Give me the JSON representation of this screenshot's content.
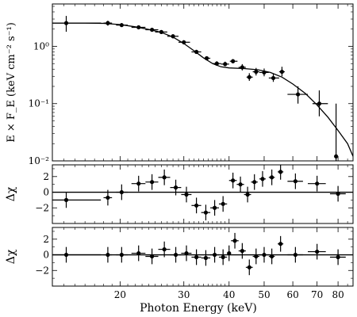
{
  "chart_data": [
    {
      "panel": "spectrum",
      "type": "scatter",
      "ylabel": "E × F_E (keV cm⁻² s⁻¹)",
      "yscale": "log",
      "ylim": [
        0.01,
        5.5
      ],
      "yticks": [
        {
          "value": 0.01,
          "label": "10⁻²"
        },
        {
          "value": 0.1,
          "label": "10⁻¹"
        },
        {
          "value": 1,
          "label": "10⁰"
        }
      ],
      "points": [
        {
          "x": 14.2,
          "y": 2.55,
          "xlo": 13.0,
          "xhi": 17.7,
          "ylo": 1.8,
          "yhi": 3.4
        },
        {
          "x": 18.5,
          "y": 2.55,
          "xlo": 18.0,
          "xhi": 19.0,
          "ylo": 2.3,
          "yhi": 2.8
        },
        {
          "x": 20.2,
          "y": 2.35,
          "xlo": 19.5,
          "xhi": 21.0,
          "ylo": 2.2,
          "yhi": 2.55
        },
        {
          "x": 22.5,
          "y": 2.15,
          "xlo": 21.5,
          "xhi": 23.5,
          "ylo": 2.0,
          "yhi": 2.3
        },
        {
          "x": 24.5,
          "y": 1.95,
          "xlo": 23.5,
          "xhi": 25.5,
          "ylo": 1.8,
          "yhi": 2.1
        },
        {
          "x": 26.0,
          "y": 1.78,
          "xlo": 25.0,
          "xhi": 27.0,
          "ylo": 1.65,
          "yhi": 1.92
        },
        {
          "x": 28.0,
          "y": 1.5,
          "xlo": 27.0,
          "xhi": 29.0,
          "ylo": 1.38,
          "yhi": 1.62
        },
        {
          "x": 30.0,
          "y": 1.18,
          "xlo": 29.0,
          "xhi": 31.2,
          "ylo": 1.08,
          "yhi": 1.28
        },
        {
          "x": 32.5,
          "y": 0.8,
          "xlo": 31.5,
          "xhi": 33.5,
          "ylo": 0.74,
          "yhi": 0.87
        },
        {
          "x": 34.7,
          "y": 0.62,
          "xlo": 34.0,
          "xhi": 35.5,
          "ylo": 0.57,
          "yhi": 0.67
        },
        {
          "x": 37.0,
          "y": 0.5,
          "xlo": 36.0,
          "xhi": 38.0,
          "ylo": 0.46,
          "yhi": 0.55
        },
        {
          "x": 39.0,
          "y": 0.49,
          "xlo": 38.0,
          "xhi": 40.0,
          "ylo": 0.45,
          "yhi": 0.54
        },
        {
          "x": 41.0,
          "y": 0.55,
          "xlo": 40.2,
          "xhi": 42.2,
          "ylo": 0.51,
          "yhi": 0.6
        },
        {
          "x": 43.5,
          "y": 0.43,
          "xlo": 42.5,
          "xhi": 44.5,
          "ylo": 0.38,
          "yhi": 0.49
        },
        {
          "x": 45.5,
          "y": 0.29,
          "xlo": 44.7,
          "xhi": 46.5,
          "ylo": 0.25,
          "yhi": 0.34
        },
        {
          "x": 47.5,
          "y": 0.36,
          "xlo": 46.5,
          "xhi": 48.5,
          "ylo": 0.31,
          "yhi": 0.42
        },
        {
          "x": 50.0,
          "y": 0.35,
          "xlo": 48.5,
          "xhi": 51.5,
          "ylo": 0.3,
          "yhi": 0.41
        },
        {
          "x": 53.0,
          "y": 0.28,
          "xlo": 51.5,
          "xhi": 55.0,
          "ylo": 0.24,
          "yhi": 0.33
        },
        {
          "x": 56.0,
          "y": 0.36,
          "xlo": 55.0,
          "xhi": 57.0,
          "ylo": 0.3,
          "yhi": 0.44
        },
        {
          "x": 62.0,
          "y": 0.145,
          "xlo": 58.0,
          "xhi": 66.0,
          "ylo": 0.1,
          "yhi": 0.2
        },
        {
          "x": 71.0,
          "y": 0.1,
          "xlo": 68.0,
          "xhi": 75.0,
          "ylo": 0.06,
          "yhi": 0.17
        },
        {
          "x": 79.0,
          "y": 0.012,
          "xlo": 79.0,
          "xhi": 79.0,
          "ylo": 0.01,
          "yhi": 0.1
        }
      ],
      "model": [
        [
          13.0,
          2.55
        ],
        [
          16.0,
          2.55
        ],
        [
          18.0,
          2.52
        ],
        [
          20.0,
          2.4
        ],
        [
          22.0,
          2.2
        ],
        [
          24.0,
          1.98
        ],
        [
          26.0,
          1.75
        ],
        [
          28.0,
          1.45
        ],
        [
          30.0,
          1.12
        ],
        [
          32.0,
          0.84
        ],
        [
          34.0,
          0.63
        ],
        [
          36.0,
          0.5
        ],
        [
          38.0,
          0.44
        ],
        [
          40.0,
          0.42
        ],
        [
          44.0,
          0.41
        ],
        [
          48.0,
          0.39
        ],
        [
          52.0,
          0.35
        ],
        [
          56.0,
          0.29
        ],
        [
          60.0,
          0.22
        ],
        [
          65.0,
          0.15
        ],
        [
          70.0,
          0.095
        ],
        [
          75.0,
          0.058
        ],
        [
          80.0,
          0.034
        ],
        [
          85.0,
          0.02
        ],
        [
          88.0,
          0.012
        ]
      ]
    },
    {
      "panel": "residuals-1",
      "type": "scatter",
      "ylabel": "Δχ",
      "ylim": [
        -4,
        3.5
      ],
      "yticks": [
        {
          "value": 2,
          "label": "2"
        },
        {
          "value": 0,
          "label": "0"
        },
        {
          "value": -2,
          "label": "−2"
        }
      ],
      "points": [
        {
          "x": 14.2,
          "y": -1.0,
          "xlo": 13.0,
          "xhi": 17.7
        },
        {
          "x": 18.5,
          "y": -0.7,
          "xlo": 18.0,
          "xhi": 19.0
        },
        {
          "x": 20.2,
          "y": 0.0,
          "xlo": 19.5,
          "xhi": 21.0
        },
        {
          "x": 22.5,
          "y": 1.1,
          "xlo": 21.5,
          "xhi": 23.5
        },
        {
          "x": 24.5,
          "y": 1.3,
          "xlo": 23.5,
          "xhi": 25.5
        },
        {
          "x": 26.5,
          "y": 1.9,
          "xlo": 25.5,
          "xhi": 27.5
        },
        {
          "x": 28.5,
          "y": 0.6,
          "xlo": 27.5,
          "xhi": 29.5
        },
        {
          "x": 30.5,
          "y": -0.3,
          "xlo": 29.5,
          "xhi": 31.5
        },
        {
          "x": 32.5,
          "y": -1.7,
          "xlo": 31.5,
          "xhi": 33.5
        },
        {
          "x": 34.5,
          "y": -2.6,
          "xlo": 33.5,
          "xhi": 35.5
        },
        {
          "x": 36.5,
          "y": -2.0,
          "xlo": 35.5,
          "xhi": 37.5
        },
        {
          "x": 38.5,
          "y": -1.5,
          "xlo": 37.5,
          "xhi": 39.5
        },
        {
          "x": 41.0,
          "y": 1.5,
          "xlo": 40.0,
          "xhi": 42.0
        },
        {
          "x": 43.0,
          "y": 1.0,
          "xlo": 42.0,
          "xhi": 44.0
        },
        {
          "x": 45.0,
          "y": -0.3,
          "xlo": 44.0,
          "xhi": 46.0
        },
        {
          "x": 47.0,
          "y": 1.3,
          "xlo": 46.0,
          "xhi": 48.0
        },
        {
          "x": 49.5,
          "y": 1.7,
          "xlo": 48.5,
          "xhi": 50.5
        },
        {
          "x": 52.5,
          "y": 1.9,
          "xlo": 51.5,
          "xhi": 53.5
        },
        {
          "x": 55.5,
          "y": 2.6,
          "xlo": 54.5,
          "xhi": 56.5
        },
        {
          "x": 61.0,
          "y": 1.4,
          "xlo": 58.0,
          "xhi": 64.0
        },
        {
          "x": 70.0,
          "y": 1.1,
          "xlo": 66.0,
          "xhi": 74.0
        },
        {
          "x": 80.0,
          "y": -0.2,
          "xlo": 76.0,
          "xhi": 84.0
        }
      ]
    },
    {
      "panel": "residuals-2",
      "type": "scatter",
      "ylabel": "Δχ",
      "ylim": [
        -4,
        3.5
      ],
      "yticks": [
        {
          "value": 2,
          "label": "2"
        },
        {
          "value": 0,
          "label": "0"
        },
        {
          "value": -2,
          "label": "−2"
        }
      ],
      "points": [
        {
          "x": 14.2,
          "y": 0.0,
          "xlo": 13.0,
          "xhi": 17.7
        },
        {
          "x": 18.5,
          "y": 0.0,
          "xlo": 18.0,
          "xhi": 19.0
        },
        {
          "x": 20.2,
          "y": 0.0,
          "xlo": 19.5,
          "xhi": 21.0
        },
        {
          "x": 22.5,
          "y": 0.2,
          "xlo": 21.5,
          "xhi": 23.5
        },
        {
          "x": 24.5,
          "y": -0.2,
          "xlo": 23.5,
          "xhi": 25.5
        },
        {
          "x": 26.5,
          "y": 0.7,
          "xlo": 25.5,
          "xhi": 27.5
        },
        {
          "x": 28.5,
          "y": 0.0,
          "xlo": 27.5,
          "xhi": 29.5
        },
        {
          "x": 30.5,
          "y": 0.2,
          "xlo": 29.5,
          "xhi": 31.5
        },
        {
          "x": 32.5,
          "y": -0.3,
          "xlo": 31.5,
          "xhi": 33.5
        },
        {
          "x": 34.5,
          "y": -0.4,
          "xlo": 33.5,
          "xhi": 35.5
        },
        {
          "x": 36.5,
          "y": 0.0,
          "xlo": 35.5,
          "xhi": 37.5
        },
        {
          "x": 38.5,
          "y": -0.3,
          "xlo": 37.5,
          "xhi": 39.5
        },
        {
          "x": 40.0,
          "y": 0.2,
          "xlo": 39.5,
          "xhi": 40.5
        },
        {
          "x": 41.5,
          "y": 1.8,
          "xlo": 40.5,
          "xhi": 42.5
        },
        {
          "x": 43.5,
          "y": 0.5,
          "xlo": 42.5,
          "xhi": 44.5
        },
        {
          "x": 45.5,
          "y": -1.6,
          "xlo": 44.5,
          "xhi": 46.5
        },
        {
          "x": 47.5,
          "y": -0.2,
          "xlo": 46.5,
          "xhi": 48.5
        },
        {
          "x": 50.0,
          "y": 0.0,
          "xlo": 48.5,
          "xhi": 51.5
        },
        {
          "x": 52.5,
          "y": -0.2,
          "xlo": 51.5,
          "xhi": 53.5
        },
        {
          "x": 55.5,
          "y": 1.4,
          "xlo": 54.5,
          "xhi": 56.5
        },
        {
          "x": 61.0,
          "y": 0.0,
          "xlo": 58.0,
          "xhi": 64.0
        },
        {
          "x": 70.0,
          "y": 0.4,
          "xlo": 66.0,
          "xhi": 74.0
        },
        {
          "x": 80.0,
          "y": -0.3,
          "xlo": 76.0,
          "xhi": 84.0
        }
      ]
    }
  ],
  "x_axis": {
    "label": "Photon Energy (keV)",
    "scale": "log",
    "xlim": [
      13.0,
      88.0
    ],
    "ticks": [
      {
        "value": 20,
        "label": "20"
      },
      {
        "value": 30,
        "label": "30"
      },
      {
        "value": 40,
        "label": "40"
      },
      {
        "value": 50,
        "label": "50"
      },
      {
        "value": 60,
        "label": "60"
      },
      {
        "value": 70,
        "label": "70"
      },
      {
        "value": 80,
        "label": "80"
      }
    ]
  }
}
